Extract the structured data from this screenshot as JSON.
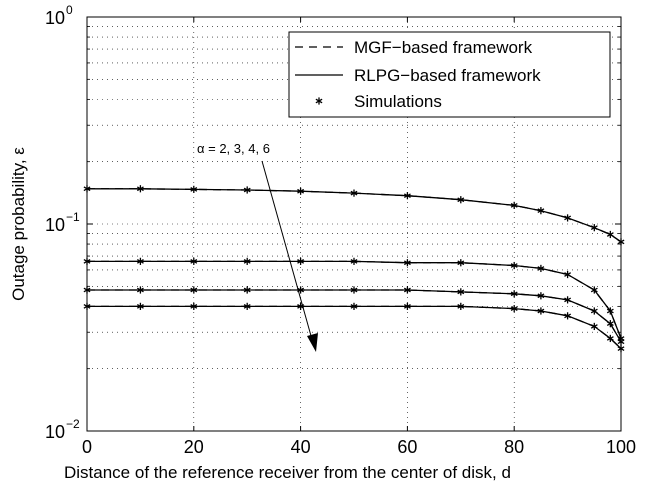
{
  "chart_data": {
    "type": "line",
    "title": "",
    "xlabel": "Distance of the reference receiver from the center of disk, d",
    "ylabel": "Outage probability, ε",
    "xlim": [
      0,
      100
    ],
    "ylim": [
      0.01,
      1
    ],
    "yscale": "log",
    "grid": true,
    "legend_placement": "top-right",
    "x_ticks": [
      0,
      20,
      40,
      60,
      80,
      100
    ],
    "x_tick_labels": [
      "0",
      "20",
      "40",
      "60",
      "80",
      "100"
    ],
    "y_ticks": [
      0.01,
      0.1,
      1
    ],
    "y_tick_labels": [
      {
        "base": "10",
        "exp": "−2"
      },
      {
        "base": "10",
        "exp": "−1"
      },
      {
        "base": "10",
        "exp": "0"
      }
    ],
    "legend": [
      {
        "label": "MGF−based framework",
        "style": "dashed"
      },
      {
        "label": "RLPG−based framework",
        "style": "solid"
      },
      {
        "label": "Simulations",
        "style": "marker"
      }
    ],
    "annotation": "α = 2, 3, 4, 6",
    "series": [
      {
        "x": [
          0,
          10,
          20,
          30,
          40,
          50,
          60,
          70,
          80,
          85,
          90,
          95,
          98,
          100
        ],
        "y": [
          0.148,
          0.148,
          0.147,
          0.146,
          0.144,
          0.141,
          0.137,
          0.131,
          0.123,
          0.116,
          0.107,
          0.096,
          0.089,
          0.082
        ]
      },
      {
        "x": [
          0,
          10,
          20,
          30,
          40,
          50,
          60,
          70,
          80,
          85,
          90,
          95,
          98,
          100
        ],
        "y": [
          0.066,
          0.066,
          0.066,
          0.066,
          0.066,
          0.066,
          0.065,
          0.065,
          0.063,
          0.061,
          0.057,
          0.048,
          0.038,
          0.028
        ]
      },
      {
        "x": [
          0,
          10,
          20,
          30,
          40,
          50,
          60,
          70,
          80,
          85,
          90,
          95,
          98,
          100
        ],
        "y": [
          0.048,
          0.048,
          0.048,
          0.048,
          0.048,
          0.048,
          0.048,
          0.047,
          0.046,
          0.045,
          0.043,
          0.038,
          0.033,
          0.027
        ]
      },
      {
        "x": [
          0,
          10,
          20,
          30,
          40,
          50,
          60,
          70,
          80,
          85,
          90,
          95,
          98,
          100
        ],
        "y": [
          0.04,
          0.04,
          0.04,
          0.04,
          0.04,
          0.04,
          0.04,
          0.04,
          0.039,
          0.038,
          0.036,
          0.032,
          0.028,
          0.025
        ]
      }
    ]
  }
}
